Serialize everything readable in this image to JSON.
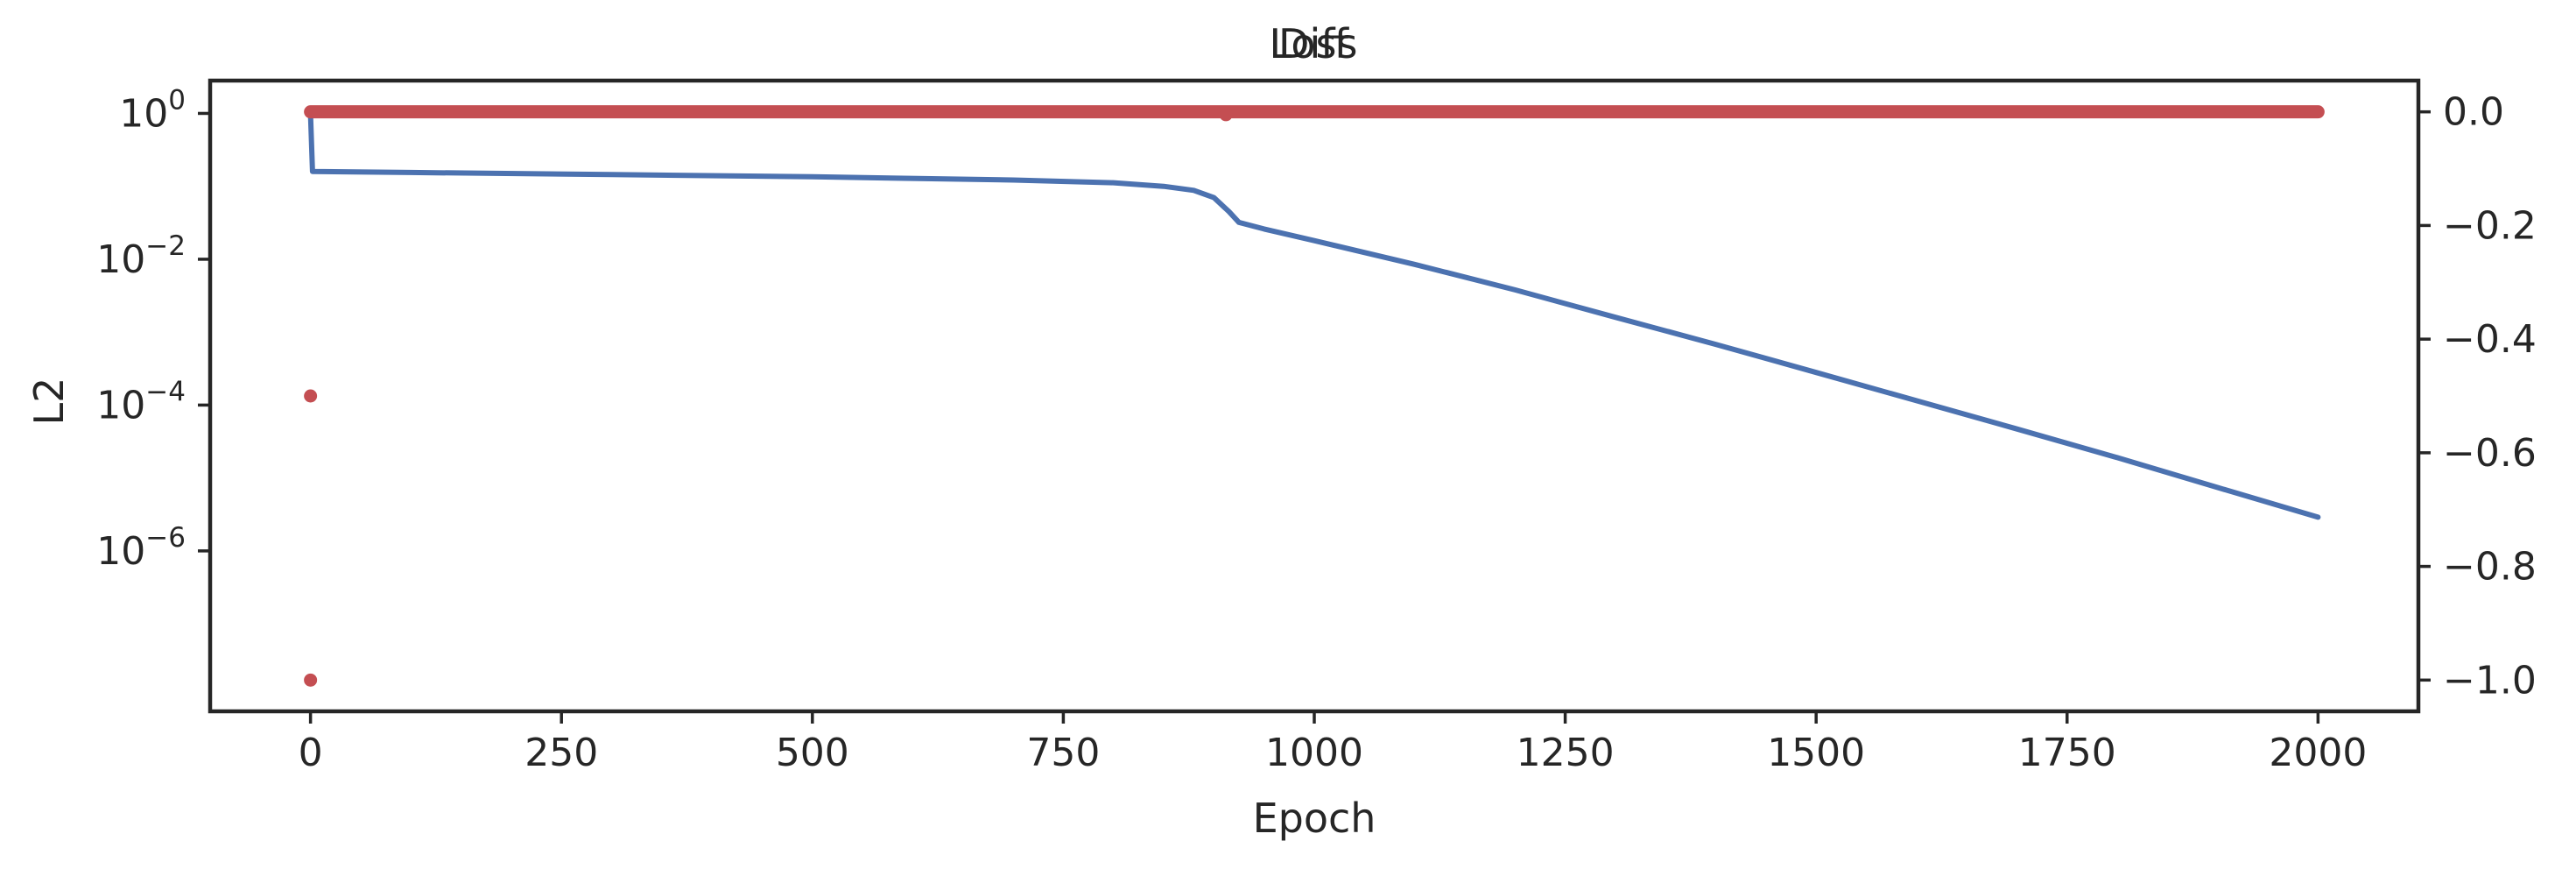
{
  "chart_data": {
    "type": "line",
    "titles": [
      "Diff",
      "Loss"
    ],
    "xlabel": "Epoch",
    "ylabel_left": "L2",
    "ylabel_right": "",
    "xlim": [
      -100,
      2100
    ],
    "x_ticks": [
      0,
      250,
      500,
      750,
      1000,
      1250,
      1500,
      1750,
      2000
    ],
    "left_axis": {
      "scale": "log",
      "ylim_exp": [
        -8.2,
        0.45
      ],
      "ticks": [
        {
          "label_base": "10",
          "label_exp": "0",
          "exp": 0
        },
        {
          "label_base": "10",
          "label_exp": "−2",
          "exp": -2
        },
        {
          "label_base": "10",
          "label_exp": "−4",
          "exp": -4
        },
        {
          "label_base": "10",
          "label_exp": "−6",
          "exp": -6
        }
      ]
    },
    "right_axis": {
      "scale": "linear",
      "ylim": [
        -1.055,
        0.055
      ],
      "ticks": [
        {
          "label": "0.0",
          "value": 0.0
        },
        {
          "label": "−0.2",
          "value": -0.2
        },
        {
          "label": "−0.4",
          "value": -0.4
        },
        {
          "label": "−0.6",
          "value": -0.6
        },
        {
          "label": "−0.8",
          "value": -0.8
        },
        {
          "label": "−1.0",
          "value": -1.0
        }
      ]
    },
    "series": [
      {
        "axis": "left",
        "style": "line",
        "color": "#4c72b0",
        "x": [
          0,
          2,
          100,
          300,
          500,
          700,
          800,
          850,
          880,
          900,
          915,
          925,
          950,
          1000,
          1100,
          1200,
          1300,
          1400,
          1500,
          1600,
          1700,
          1800,
          1900,
          2000
        ],
        "y": [
          1.0,
          0.16,
          0.155,
          0.145,
          0.135,
          0.122,
          0.112,
          0.1,
          0.088,
          0.07,
          0.045,
          0.032,
          0.026,
          0.018,
          0.0085,
          0.0038,
          0.0016,
          0.00068,
          0.00028,
          0.000115,
          4.7e-05,
          1.9e-05,
          7.4e-06,
          2.9e-06
        ]
      },
      {
        "axis": "right",
        "style": "dots",
        "color": "#c44e52",
        "x_range": [
          0,
          2000
        ],
        "y_value": 0.0,
        "outliers": [
          {
            "x": 0,
            "y": -0.5
          },
          {
            "x": 0,
            "y": -1.0
          },
          {
            "x": 912,
            "y": -0.005
          }
        ]
      }
    ]
  }
}
